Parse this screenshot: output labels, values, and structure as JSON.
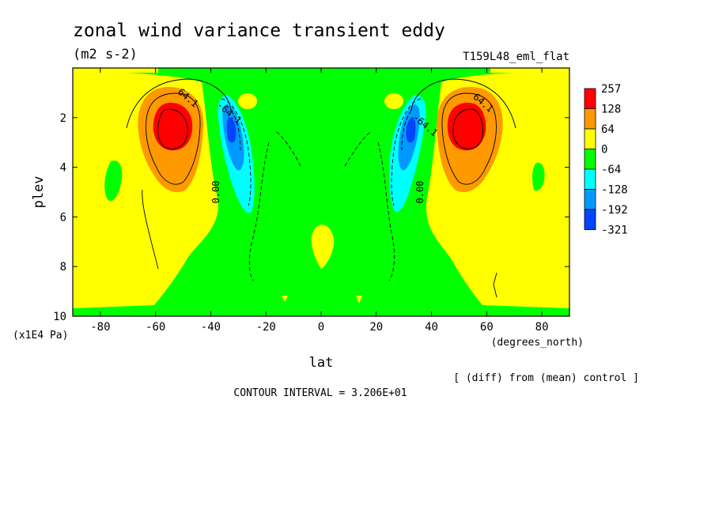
{
  "title": "zonal wind variance transient eddy",
  "units": "(m2 s-2)",
  "run_name": "T159L48_eml_flat",
  "diff_note": "[ (diff) from (mean) control ]",
  "contour_note": "CONTOUR INTERVAL = 3.206E+01",
  "chart_data": {
    "type": "heatmap",
    "xlabel": "lat",
    "xunits": "(degrees_north)",
    "ylabel": "plev",
    "yunits": "(x1E4 Pa)",
    "xlim": [
      -90,
      90
    ],
    "ylim": [
      0,
      10
    ],
    "y_inverted": true,
    "xticks": [
      -80,
      -60,
      -40,
      -20,
      0,
      20,
      40,
      60,
      80
    ],
    "yticks": [
      2,
      4,
      6,
      8,
      10
    ],
    "contour_labels": [
      {
        "text": "64.1",
        "x": -49,
        "y": 1.3
      },
      {
        "text": "-64.1",
        "x": -34,
        "y": 1.9
      },
      {
        "text": "0.00",
        "x": -37,
        "y": 5.0
      },
      {
        "text": "64.1",
        "x": 58,
        "y": 1.5
      },
      {
        "text": "-64.1",
        "x": 37,
        "y": 2.4
      },
      {
        "text": "0.00",
        "x": 37,
        "y": 5.0
      }
    ],
    "colorbar": {
      "labels": [
        "257",
        "128",
        "64",
        "0",
        "-64",
        "-128",
        "-192",
        "-321"
      ],
      "colors": [
        "#ff0000",
        "#ff9900",
        "#ffff00",
        "#00ff00",
        "#00ffff",
        "#0099ff",
        "#0044ff"
      ]
    },
    "features": [
      {
        "kind": "positive max",
        "lat": -55,
        "plev": 2.5,
        "value_range": ">=128"
      },
      {
        "kind": "positive max",
        "lat": 53,
        "plev": 2.5,
        "value_range": ">=128"
      },
      {
        "kind": "negative min",
        "lat": -34,
        "plev": 2.8,
        "value_range": "<=-192"
      },
      {
        "kind": "negative min",
        "lat": 34,
        "plev": 2.8,
        "value_range": "<=-192"
      }
    ]
  }
}
